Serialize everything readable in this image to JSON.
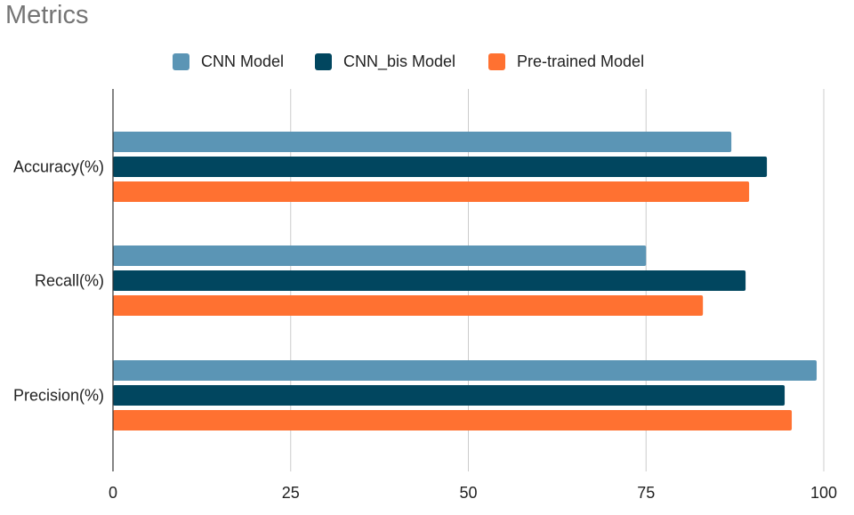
{
  "chart_data": {
    "type": "bar",
    "orientation": "horizontal",
    "title": "Metrics",
    "categories": [
      "Accuracy(%)",
      "Recall(%)",
      "Precision(%)"
    ],
    "series": [
      {
        "name": "CNN Model",
        "color": "#5b95b5",
        "values": [
          87,
          75,
          99
        ]
      },
      {
        "name": "CNN_bis Model",
        "color": "#01465f",
        "values": [
          92,
          89,
          94.5
        ]
      },
      {
        "name": "Pre-trained Model",
        "color": "#ff7131",
        "values": [
          89.5,
          83,
          95.5
        ]
      }
    ],
    "xlim": [
      0,
      100
    ],
    "xticks": [
      "0",
      "25",
      "50",
      "75",
      "100"
    ],
    "xlabel": "",
    "ylabel": "",
    "grid": true,
    "legend_position": "top"
  }
}
